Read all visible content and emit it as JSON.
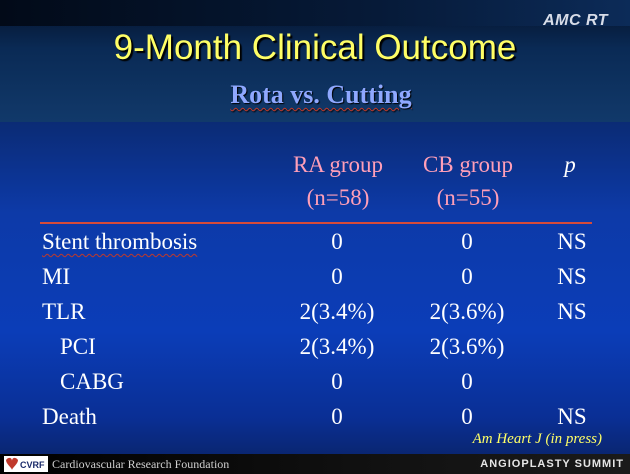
{
  "header": {
    "brand_tag": "AMC RT",
    "title": "9-Month Clinical Outcome",
    "subtitle": "Rota vs. Cutting"
  },
  "table": {
    "columns": [
      {
        "line1": "RA group",
        "line2": "(n=58)"
      },
      {
        "line1": "CB group",
        "line2": "(n=55)"
      },
      {
        "line1": "p",
        "line2": ""
      }
    ],
    "rows": [
      {
        "label": "Stent thrombosis",
        "ra": "0",
        "cb": "0",
        "p": "NS"
      },
      {
        "label": "MI",
        "ra": "0",
        "cb": "0",
        "p": "NS"
      },
      {
        "label": "TLR",
        "ra": "2(3.4%)",
        "cb": "2(3.6%)",
        "p": "NS"
      },
      {
        "label": "PCI",
        "ra": "2(3.4%)",
        "cb": "2(3.6%)",
        "p": ""
      },
      {
        "label": "CABG",
        "ra": "0",
        "cb": "0",
        "p": ""
      },
      {
        "label": "Death",
        "ra": "0",
        "cb": "0",
        "p": "NS"
      }
    ]
  },
  "citation": "Am Heart J (in press)",
  "footer": {
    "logo_text": "CVRF",
    "organization": "Cardiovascular Research Foundation",
    "event": "ANGIOPLASTY SUMMIT"
  },
  "colors": {
    "title": "#ffff66",
    "subtitle": "#8fa8ff",
    "column_header": "#ff9fb8",
    "rule": "#d64b3a"
  }
}
